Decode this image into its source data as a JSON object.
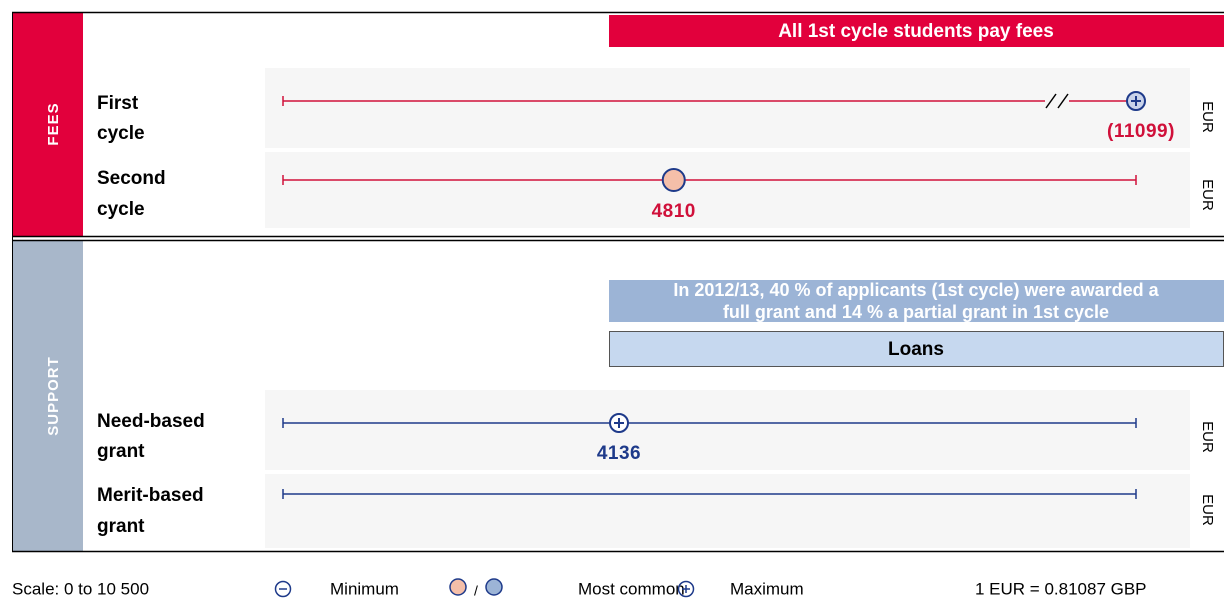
{
  "scale": {
    "label": "Scale: 0 to 10 500",
    "min": 0,
    "max": 10500
  },
  "fees": {
    "label": "FEES",
    "banner": "All 1st cycle students pay fees",
    "rows": [
      {
        "label": [
          "First",
          "cycle"
        ],
        "maximum": 11099,
        "maximum_label": "(11099)",
        "unit": "EUR"
      },
      {
        "label": [
          "Second",
          "cycle"
        ],
        "most_common": 4810,
        "unit": "EUR"
      }
    ]
  },
  "support": {
    "label": "SUPPORT",
    "banner": [
      "In 2012/13, 40 % of applicants (1st cycle) were awarded a",
      "full grant and 14 % a partial grant in 1st cycle"
    ],
    "loans": "Loans",
    "rows": [
      {
        "label": [
          "Need-based",
          "grant"
        ],
        "maximum": 4136,
        "unit": "EUR"
      },
      {
        "label": [
          "Merit-based",
          "grant"
        ],
        "unit": "EUR"
      }
    ]
  },
  "legend": {
    "minimum": "Minimum",
    "separator": "/",
    "most_common": "Most common",
    "maximum": "Maximum",
    "exchange": "1 EUR = 0.81087 GBP"
  }
}
